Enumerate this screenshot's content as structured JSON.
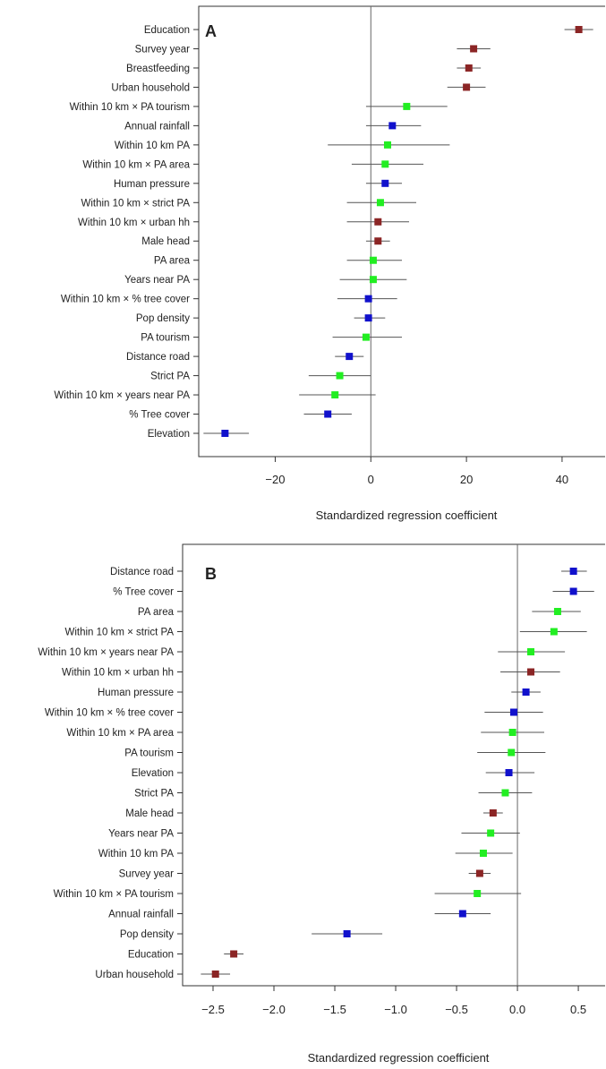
{
  "colors": {
    "green": "#22ee22",
    "blue": "#1111cc",
    "darkred": "#8b2525",
    "ci": "#555555",
    "axis": "#333333",
    "zero_line": "#666666"
  },
  "chart_data": [
    {
      "type": "scatter",
      "panel_label": "A",
      "title": "",
      "xlabel": "Standardized regression coefficient",
      "ylabel": "",
      "xlim": [
        -36,
        49
      ],
      "xticks": [
        -20,
        0,
        20,
        40
      ],
      "xtick_labels": [
        "−20",
        "0",
        "20",
        "40"
      ],
      "grid": false,
      "reference_line": 0,
      "points": [
        {
          "label": "Education",
          "value": 43.5,
          "lo": 40.5,
          "hi": 46.5,
          "color": "darkred"
        },
        {
          "label": "Survey year",
          "value": 21.5,
          "lo": 18.0,
          "hi": 25.0,
          "color": "darkred"
        },
        {
          "label": "Breastfeeding",
          "value": 20.5,
          "lo": 18.0,
          "hi": 23.0,
          "color": "darkred"
        },
        {
          "label": "Urban household",
          "value": 20.0,
          "lo": 16.0,
          "hi": 24.0,
          "color": "darkred"
        },
        {
          "label": "Within 10 km × PA tourism",
          "value": 7.5,
          "lo": -1.0,
          "hi": 16.0,
          "color": "green"
        },
        {
          "label": "Annual rainfall",
          "value": 4.5,
          "lo": -1.0,
          "hi": 10.5,
          "color": "blue"
        },
        {
          "label": "Within 10 km PA",
          "value": 3.5,
          "lo": -9.0,
          "hi": 16.5,
          "color": "green"
        },
        {
          "label": "Within 10 km × PA area",
          "value": 3.0,
          "lo": -4.0,
          "hi": 11.0,
          "color": "green"
        },
        {
          "label": "Human pressure",
          "value": 3.0,
          "lo": -1.0,
          "hi": 6.5,
          "color": "blue"
        },
        {
          "label": "Within 10 km × strict PA",
          "value": 2.0,
          "lo": -5.0,
          "hi": 9.5,
          "color": "green"
        },
        {
          "label": "Within 10 km × urban hh",
          "value": 1.5,
          "lo": -5.0,
          "hi": 8.0,
          "color": "darkred"
        },
        {
          "label": "Male head",
          "value": 1.5,
          "lo": -1.0,
          "hi": 4.0,
          "color": "darkred"
        },
        {
          "label": "PA area",
          "value": 0.5,
          "lo": -5.0,
          "hi": 6.5,
          "color": "green"
        },
        {
          "label": "Years near PA",
          "value": 0.5,
          "lo": -6.5,
          "hi": 7.5,
          "color": "green"
        },
        {
          "label": "Within 10 km × % tree cover",
          "value": -0.5,
          "lo": -7.0,
          "hi": 5.5,
          "color": "blue"
        },
        {
          "label": "Pop density",
          "value": -0.5,
          "lo": -3.5,
          "hi": 3.0,
          "color": "blue"
        },
        {
          "label": "PA tourism",
          "value": -1.0,
          "lo": -8.0,
          "hi": 6.5,
          "color": "green"
        },
        {
          "label": "Distance road",
          "value": -4.5,
          "lo": -7.5,
          "hi": -1.5,
          "color": "blue"
        },
        {
          "label": "Strict PA",
          "value": -6.5,
          "lo": -13.0,
          "hi": 0.0,
          "color": "green"
        },
        {
          "label": "Within 10 km × years near PA",
          "value": -7.5,
          "lo": -15.0,
          "hi": 1.0,
          "color": "green"
        },
        {
          "label": "% Tree cover",
          "value": -9.0,
          "lo": -14.0,
          "hi": -4.0,
          "color": "blue"
        },
        {
          "label": "Elevation",
          "value": -30.5,
          "lo": -35.0,
          "hi": -25.5,
          "color": "blue"
        }
      ]
    },
    {
      "type": "scatter",
      "panel_label": "B",
      "title": "",
      "xlabel": "Standardized regression coefficient",
      "ylabel": "",
      "xlim": [
        -2.75,
        0.72
      ],
      "xticks": [
        -2.5,
        -2.0,
        -1.5,
        -1.0,
        -0.5,
        0.0,
        0.5
      ],
      "xtick_labels": [
        "−2.5",
        "−2.0",
        "−1.5",
        "−1.0",
        "−0.5",
        "0.0",
        "0.5"
      ],
      "grid": false,
      "reference_line": 0,
      "points": [
        {
          "label": "Distance road",
          "value": 0.46,
          "lo": 0.36,
          "hi": 0.57,
          "color": "blue"
        },
        {
          "label": "% Tree cover",
          "value": 0.46,
          "lo": 0.29,
          "hi": 0.63,
          "color": "blue"
        },
        {
          "label": "PA area",
          "value": 0.33,
          "lo": 0.12,
          "hi": 0.52,
          "color": "green"
        },
        {
          "label": "Within 10 km × strict PA",
          "value": 0.3,
          "lo": 0.02,
          "hi": 0.57,
          "color": "green"
        },
        {
          "label": "Within 10 km × years near PA",
          "value": 0.11,
          "lo": -0.16,
          "hi": 0.39,
          "color": "green"
        },
        {
          "label": "Within 10 km × urban hh",
          "value": 0.11,
          "lo": -0.14,
          "hi": 0.35,
          "color": "darkred"
        },
        {
          "label": "Human pressure",
          "value": 0.07,
          "lo": -0.05,
          "hi": 0.19,
          "color": "blue"
        },
        {
          "label": "Within 10 km × % tree cover",
          "value": -0.03,
          "lo": -0.27,
          "hi": 0.21,
          "color": "blue"
        },
        {
          "label": "Within 10 km × PA area",
          "value": -0.04,
          "lo": -0.3,
          "hi": 0.22,
          "color": "green"
        },
        {
          "label": "PA tourism",
          "value": -0.05,
          "lo": -0.33,
          "hi": 0.23,
          "color": "green"
        },
        {
          "label": "Elevation",
          "value": -0.07,
          "lo": -0.26,
          "hi": 0.14,
          "color": "blue"
        },
        {
          "label": "Strict PA",
          "value": -0.1,
          "lo": -0.32,
          "hi": 0.12,
          "color": "green"
        },
        {
          "label": "Male head",
          "value": -0.2,
          "lo": -0.28,
          "hi": -0.12,
          "color": "darkred"
        },
        {
          "label": "Years near PA",
          "value": -0.22,
          "lo": -0.46,
          "hi": 0.02,
          "color": "green"
        },
        {
          "label": "Within 10 km PA",
          "value": -0.28,
          "lo": -0.51,
          "hi": -0.04,
          "color": "green"
        },
        {
          "label": "Survey year",
          "value": -0.31,
          "lo": -0.4,
          "hi": -0.22,
          "color": "darkred"
        },
        {
          "label": "Within 10 km × PA tourism",
          "value": -0.33,
          "lo": -0.68,
          "hi": 0.03,
          "color": "green"
        },
        {
          "label": "Annual rainfall",
          "value": -0.45,
          "lo": -0.68,
          "hi": -0.22,
          "color": "blue"
        },
        {
          "label": "Pop density",
          "value": -1.4,
          "lo": -1.69,
          "hi": -1.11,
          "color": "blue"
        },
        {
          "label": "Education",
          "value": -2.33,
          "lo": -2.41,
          "hi": -2.25,
          "color": "darkred"
        },
        {
          "label": "Urban household",
          "value": -2.48,
          "lo": -2.6,
          "hi": -2.36,
          "color": "darkred"
        }
      ]
    }
  ]
}
